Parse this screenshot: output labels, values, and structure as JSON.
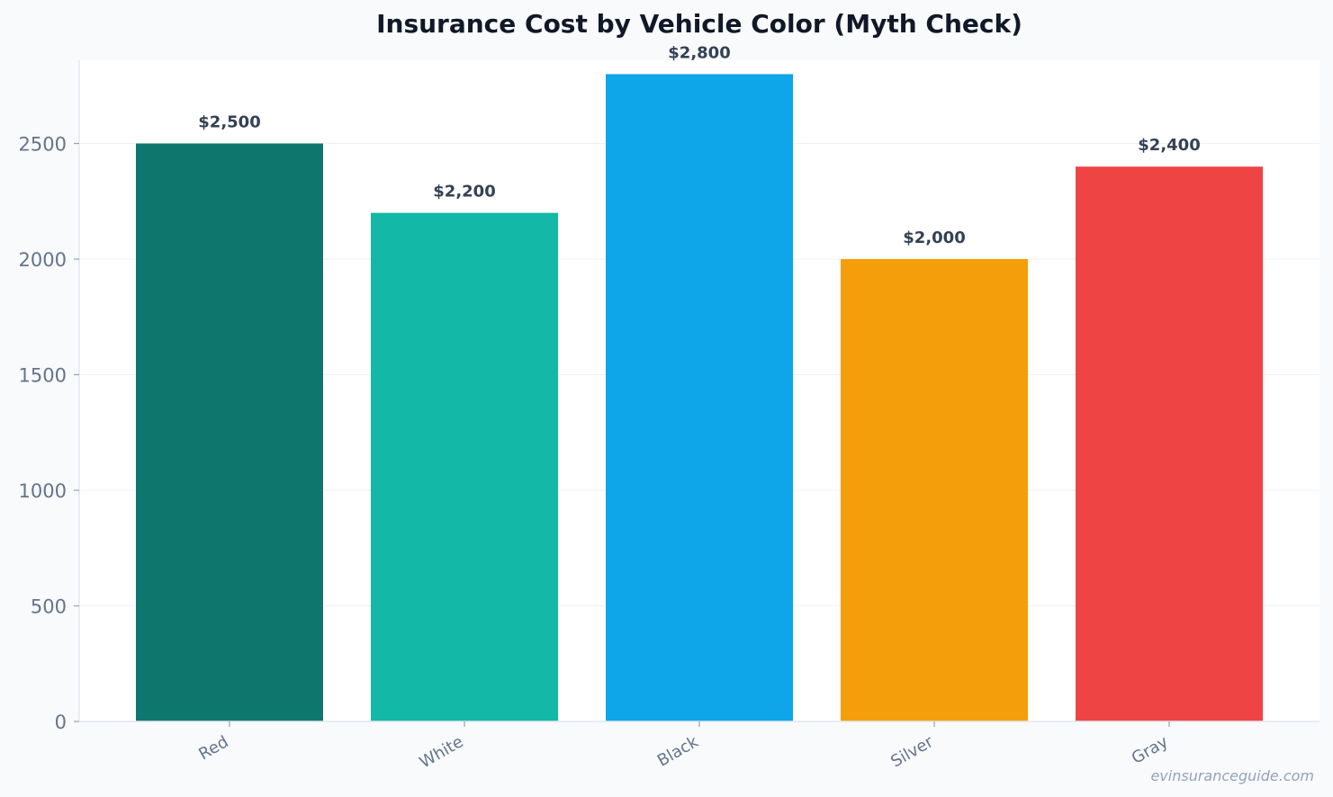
{
  "chart_data": {
    "type": "bar",
    "title": "Insurance Cost by Vehicle Color (Myth Check)",
    "xlabel": "",
    "ylabel": "",
    "categories": [
      "Red",
      "White",
      "Black",
      "Silver",
      "Gray"
    ],
    "values": [
      2500,
      2200,
      2800,
      2000,
      2400
    ],
    "value_labels": [
      "$2,500",
      "$2,200",
      "$2,800",
      "$2,000",
      "$2,400"
    ],
    "colors": [
      "#0f766e",
      "#14b8a6",
      "#0ea5e9",
      "#f59e0b",
      "#ef4444"
    ],
    "ylim": [
      0,
      2860
    ],
    "yticks": [
      0,
      500,
      1000,
      1500,
      2000,
      2500
    ],
    "grid": true,
    "legend": "none"
  },
  "watermark": "evinsuranceguide.com"
}
